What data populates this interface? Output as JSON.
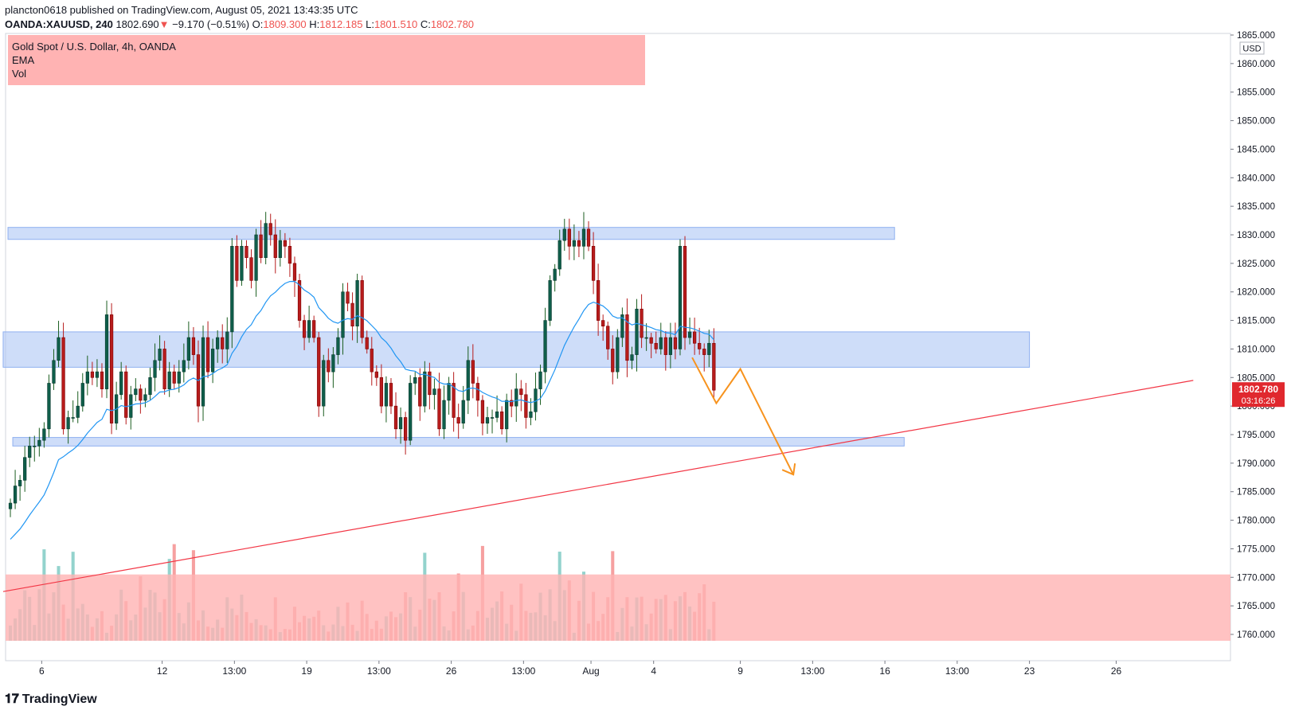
{
  "header": {
    "published": "plancton0618 published on TradingView.com, August 05, 2021 13:43:35 UTC",
    "symbol": "OANDA:XAUUSD, 240",
    "last": "1802.690",
    "change_arrow": "▼",
    "change": "−9.170 (−0.51%)",
    "o_label": "O:",
    "o_value": "1809.300",
    "h_label": "H:",
    "h_value": "1812.185",
    "l_label": "L:",
    "l_value": "1801.510",
    "c_label": "C:",
    "c_value": "1802.780"
  },
  "legend": {
    "title": "Gold Spot / U.S. Dollar, 4h, OANDA",
    "ema": "EMA",
    "vol": "Vol"
  },
  "footer": {
    "brand": "TradingView",
    "logo_icon": "tradingview-logo-icon"
  },
  "colors": {
    "up": "#26a69a",
    "down": "#ef5350",
    "zone": "#aec6f5",
    "ema": "#2196f3",
    "trendline": "#f23645",
    "projection": "#f7931e",
    "legend_bg": "#ffb3b3"
  },
  "chart_data": {
    "type": "candlestick",
    "title": "Gold Spot / U.S. Dollar, 4h, OANDA",
    "currency": "USD",
    "ylim": [
      1758,
      1866
    ],
    "y_ticks": [
      1760,
      1765,
      1770,
      1775,
      1780,
      1785,
      1790,
      1795,
      1800,
      1805,
      1810,
      1815,
      1820,
      1825,
      1830,
      1835,
      1840,
      1845,
      1850,
      1855,
      1860,
      1865
    ],
    "y_tick_labels": [
      "1760.000",
      "1765.000",
      "1770.000",
      "1775.000",
      "1780.000",
      "1785.000",
      "1790.000",
      "1795.000",
      "1800.000",
      "1805.000",
      "1810.000",
      "1815.000",
      "1820.000",
      "1825.000",
      "1830.000",
      "1835.000",
      "1840.000",
      "1845.000",
      "1850.000",
      "1855.000",
      "1860.000",
      "1865.000"
    ],
    "x_ticks": [
      {
        "label": "6",
        "bar": 7
      },
      {
        "label": "12",
        "bar": 32
      },
      {
        "label": "13:00",
        "bar": 47
      },
      {
        "label": "19",
        "bar": 62
      },
      {
        "label": "13:00",
        "bar": 77
      },
      {
        "label": "26",
        "bar": 92
      },
      {
        "label": "13:00",
        "bar": 107
      },
      {
        "label": "Aug",
        "bar": 121
      },
      {
        "label": "4",
        "bar": 134
      },
      {
        "label": "9",
        "bar": 152
      },
      {
        "label": "13:00",
        "bar": 167
      },
      {
        "label": "16",
        "bar": 182
      },
      {
        "label": "13:00",
        "bar": 197
      },
      {
        "label": "23",
        "bar": 212
      },
      {
        "label": "26",
        "bar": 230
      }
    ],
    "x_range_bars": [
      0,
      246
    ],
    "last_price": {
      "value": 1802.78,
      "label": "1802.780",
      "countdown": "03:16:26"
    },
    "closes": [
      1783,
      1786,
      1787,
      1791,
      1793,
      1793,
      1794,
      1796,
      1804,
      1808,
      1812,
      1796,
      1798,
      1798,
      1800,
      1804,
      1806,
      1805,
      1806,
      1803,
      1816,
      1797,
      1802,
      1806,
      1798,
      1802,
      1803,
      1801,
      1802,
      1805,
      1808,
      1810,
      1803,
      1806,
      1804,
      1806,
      1808,
      1812,
      1809,
      1800,
      1812,
      1806,
      1810,
      1812,
      1810,
      1813,
      1828,
      1822,
      1828,
      1826,
      1822,
      1830,
      1826,
      1832,
      1830,
      1826,
      1829,
      1828,
      1825,
      1822,
      1815,
      1812,
      1815,
      1812,
      1800,
      1808,
      1806,
      1809,
      1812,
      1820,
      1818,
      1814,
      1822,
      1812,
      1810,
      1806,
      1805,
      1800,
      1804,
      1800,
      1796,
      1798,
      1794,
      1804,
      1805,
      1800,
      1806,
      1802,
      1803,
      1796,
      1801,
      1804,
      1798,
      1797,
      1801,
      1808,
      1804,
      1801,
      1797,
      1798,
      1798,
      1799,
      1796,
      1801,
      1800,
      1803,
      1802,
      1798,
      1799,
      1803,
      1806,
      1815,
      1822,
      1824,
      1829,
      1831,
      1828,
      1829,
      1828,
      1831,
      1828,
      1822,
      1815,
      1814,
      1810,
      1806,
      1812,
      1816,
      1808,
      1809,
      1817,
      1812,
      1812,
      1811,
      1810,
      1812,
      1809,
      1812,
      1810,
      1828,
      1812,
      1813,
      1811,
      1810,
      1809,
      1811,
      1802.78
    ],
    "ema_values_note": "",
    "zones": [
      {
        "y1": 1829.2,
        "y2": 1831.3,
        "x1": 0,
        "x2": 184
      },
      {
        "y1": 1806.8,
        "y2": 1813.0,
        "x1": -1,
        "x2": 212
      },
      {
        "y1": 1793.0,
        "y2": 1794.5,
        "x1": 1,
        "x2": 186
      }
    ],
    "trendline": {
      "x1": -1,
      "y1": 1767.5,
      "x2": 246,
      "y2": 1804.5
    },
    "projection": [
      {
        "bar": 142,
        "price": 1808.5
      },
      {
        "bar": 147,
        "price": 1800.5
      },
      {
        "bar": 152,
        "price": 1806.5
      },
      {
        "bar": 163,
        "price": 1788.0
      }
    ],
    "volume_zone": {
      "y1": 1760.0,
      "y2": 1770.5
    }
  }
}
